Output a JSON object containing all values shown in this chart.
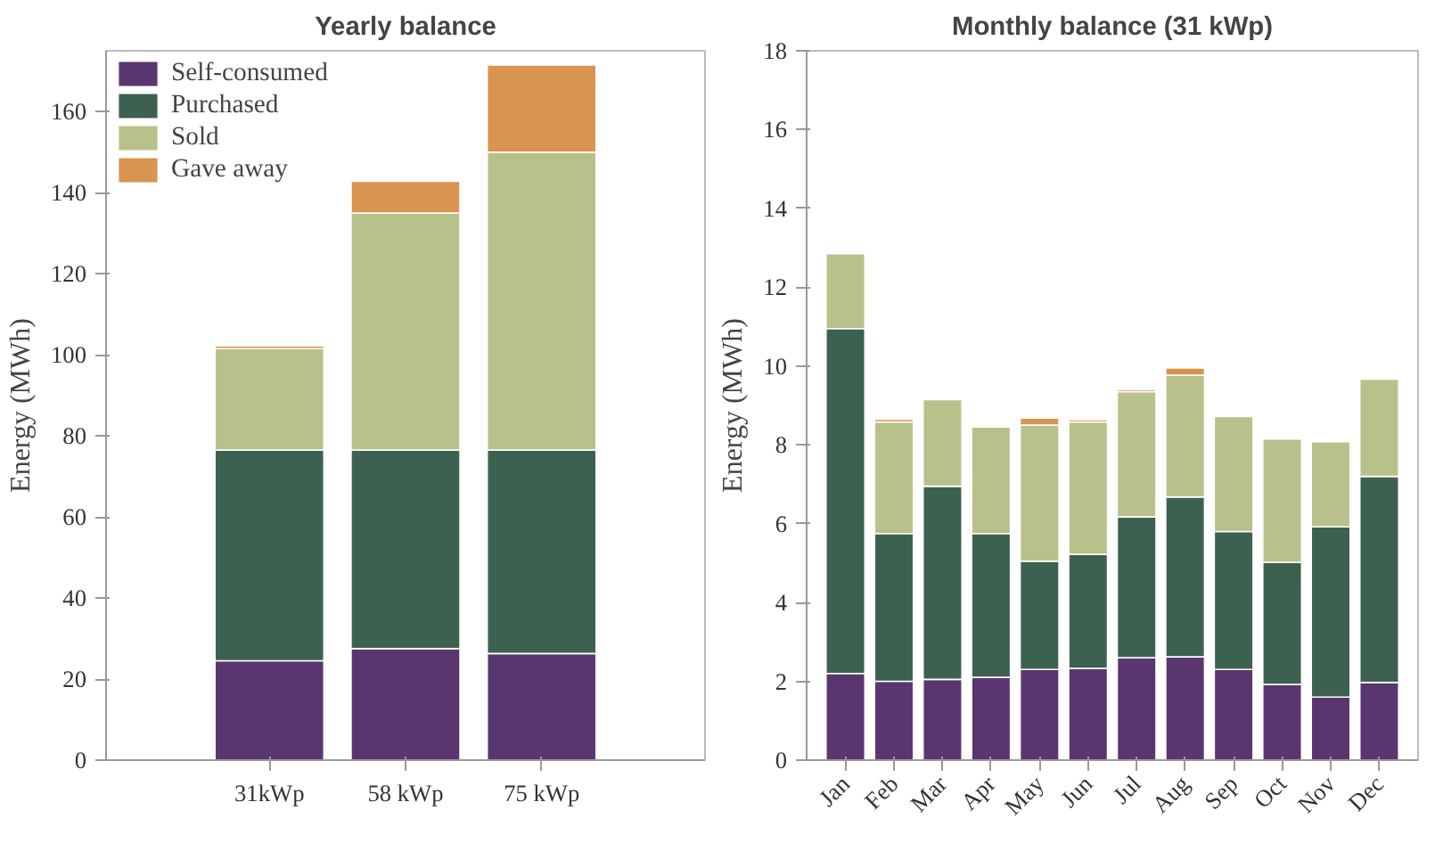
{
  "chart_data": [
    {
      "type": "bar",
      "title": "Yearly balance",
      "ylabel": "Energy (MWh)",
      "stacked": true,
      "categories": [
        "31kWp",
        "58 kWp",
        "75 kWp"
      ],
      "ylim": [
        0,
        175
      ],
      "yticks": [
        0,
        20,
        40,
        60,
        80,
        100,
        120,
        140,
        160
      ],
      "grid": false,
      "legend": "top left",
      "series": [
        {
          "name": "Self-consumed",
          "color": "#5a3670",
          "values": [
            24.5,
            27.5,
            26.3
          ]
        },
        {
          "name": "Purchased",
          "color": "#3d6151",
          "values": [
            52,
            49,
            50.2
          ]
        },
        {
          "name": "Sold",
          "color": "#b8c18a",
          "values": [
            25,
            58.5,
            73.5
          ]
        },
        {
          "name": "Gave away",
          "color": "#d9944f",
          "values": [
            0.7,
            7.8,
            21.5
          ]
        }
      ]
    },
    {
      "type": "bar",
      "title": "Monthly balance (31 kWp)",
      "ylabel": "Energy (MWh)",
      "stacked": true,
      "categories": [
        "Jan",
        "Feb",
        "Mar",
        "Apr",
        "May",
        "Jun",
        "Jul",
        "Aug",
        "Sep",
        "Oct",
        "Nov",
        "Dec"
      ],
      "ylim": [
        0,
        18
      ],
      "yticks": [
        0,
        2,
        4,
        6,
        8,
        10,
        12,
        14,
        16,
        18
      ],
      "grid": false,
      "legend": false,
      "series": [
        {
          "color": "#5a3670",
          "values": [
            2.2,
            2.0,
            2.05,
            2.1,
            2.3,
            2.33,
            2.6,
            2.62,
            2.3,
            1.92,
            1.6,
            1.97
          ]
        },
        {
          "color": "#3d6151",
          "values": [
            8.75,
            3.75,
            4.9,
            3.65,
            2.75,
            2.89,
            3.57,
            4.06,
            3.5,
            3.1,
            4.32,
            5.23
          ]
        },
        {
          "color": "#b8c18a",
          "values": [
            1.9,
            2.83,
            2.2,
            2.7,
            3.45,
            3.36,
            3.18,
            3.09,
            2.92,
            3.13,
            2.16,
            2.47
          ]
        },
        {
          "color": "#d9944f",
          "values": [
            0,
            0.07,
            0,
            0,
            0.18,
            0.06,
            0.05,
            0.18,
            null,
            0,
            0,
            0
          ]
        }
      ]
    }
  ]
}
